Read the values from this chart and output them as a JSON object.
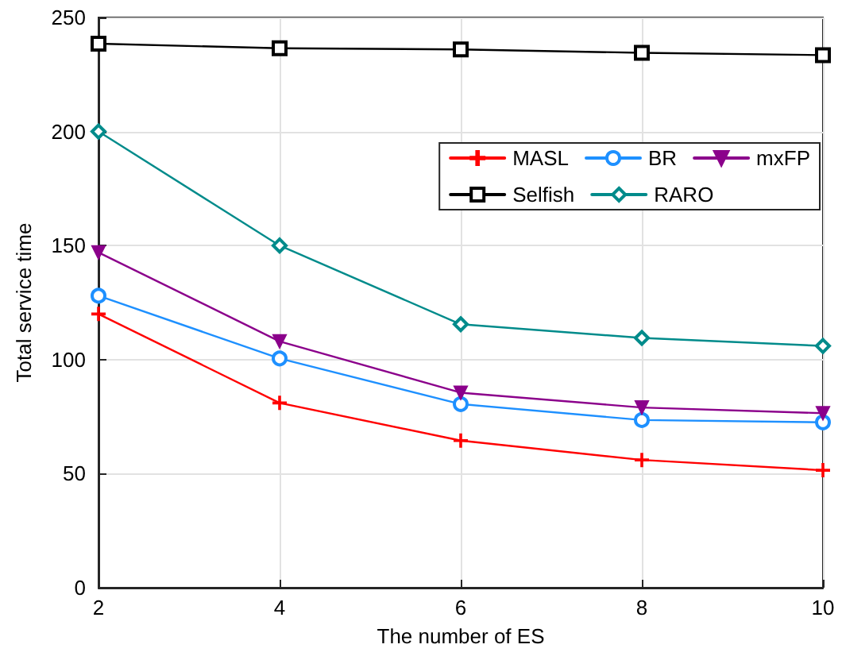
{
  "chart_data": {
    "type": "line",
    "xlabel": "The number of ES",
    "ylabel": "Total service time",
    "x": [
      2,
      4,
      6,
      8,
      10
    ],
    "xlim": [
      2,
      10
    ],
    "xticks": [
      2,
      4,
      6,
      8,
      10
    ],
    "ylim": [
      0,
      250
    ],
    "yticks": [
      0,
      50,
      100,
      150,
      200,
      250
    ],
    "grid": true,
    "legend": "top right",
    "line_style": "solid",
    "series": [
      {
        "name": "MASL",
        "color": "#ff0000",
        "marker": "cross",
        "values": [
          120,
          81,
          64.5,
          56,
          51.5
        ]
      },
      {
        "name": "BR",
        "color": "#1e90ff",
        "marker": "circle",
        "values": [
          128,
          100.5,
          80.5,
          73.5,
          72.5
        ]
      },
      {
        "name": "mxFP",
        "color": "#8b008b",
        "marker": "triangle",
        "values": [
          147,
          108,
          85.5,
          79,
          76.5
        ]
      },
      {
        "name": "Selfish",
        "color": "#000000",
        "marker": "square",
        "values": [
          238.5,
          236.5,
          236,
          234.5,
          233.5
        ]
      },
      {
        "name": "RARO",
        "color": "#008b8b",
        "marker": "diamond",
        "values": [
          200,
          150,
          115.5,
          109.5,
          106
        ]
      }
    ]
  }
}
